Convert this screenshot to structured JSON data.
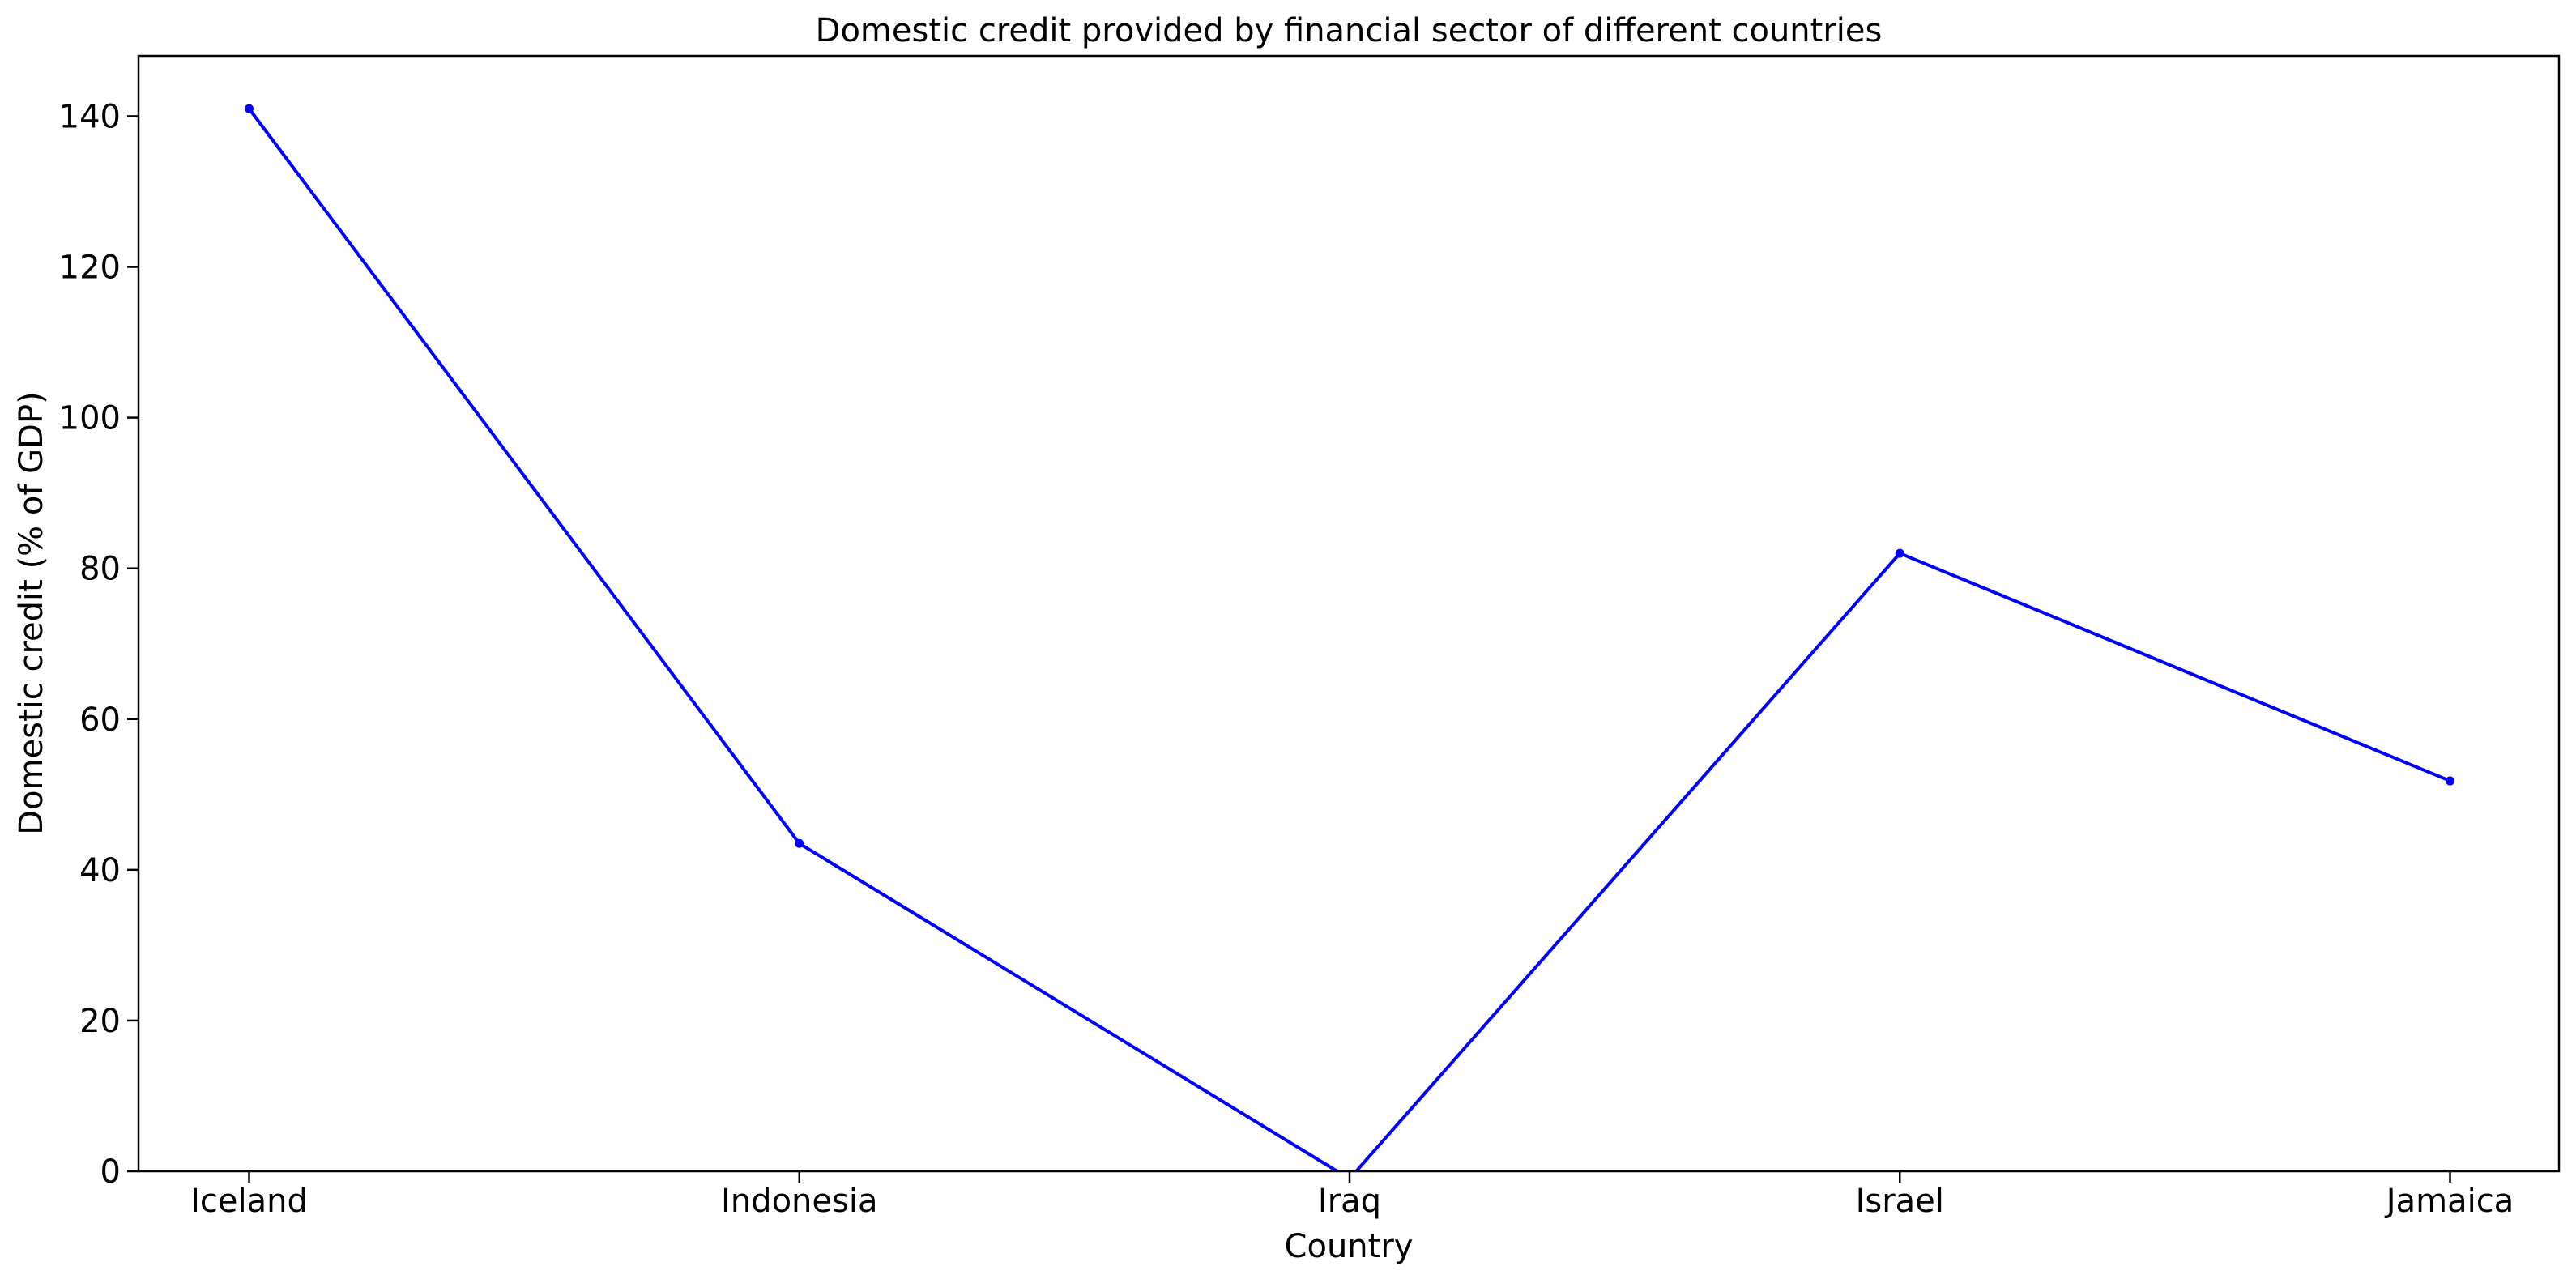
{
  "chart_data": {
    "type": "line",
    "title": "Domestic credit provided by financial sector of different countries",
    "xlabel": "Country",
    "ylabel": "Domestic credit (% of GDP)",
    "categories": [
      "Iceland",
      "Indonesia",
      "Iraq",
      "Israel",
      "Jamaica"
    ],
    "series": [
      {
        "values": [
          141.0,
          43.5,
          -1.0,
          82.0,
          51.8
        ],
        "color": "#0000ff",
        "marker": "point"
      }
    ],
    "ylim": [
      0,
      148
    ],
    "yticks": [
      0,
      20,
      40,
      60,
      80,
      100,
      120,
      140
    ],
    "grid": false,
    "legend": "none"
  }
}
